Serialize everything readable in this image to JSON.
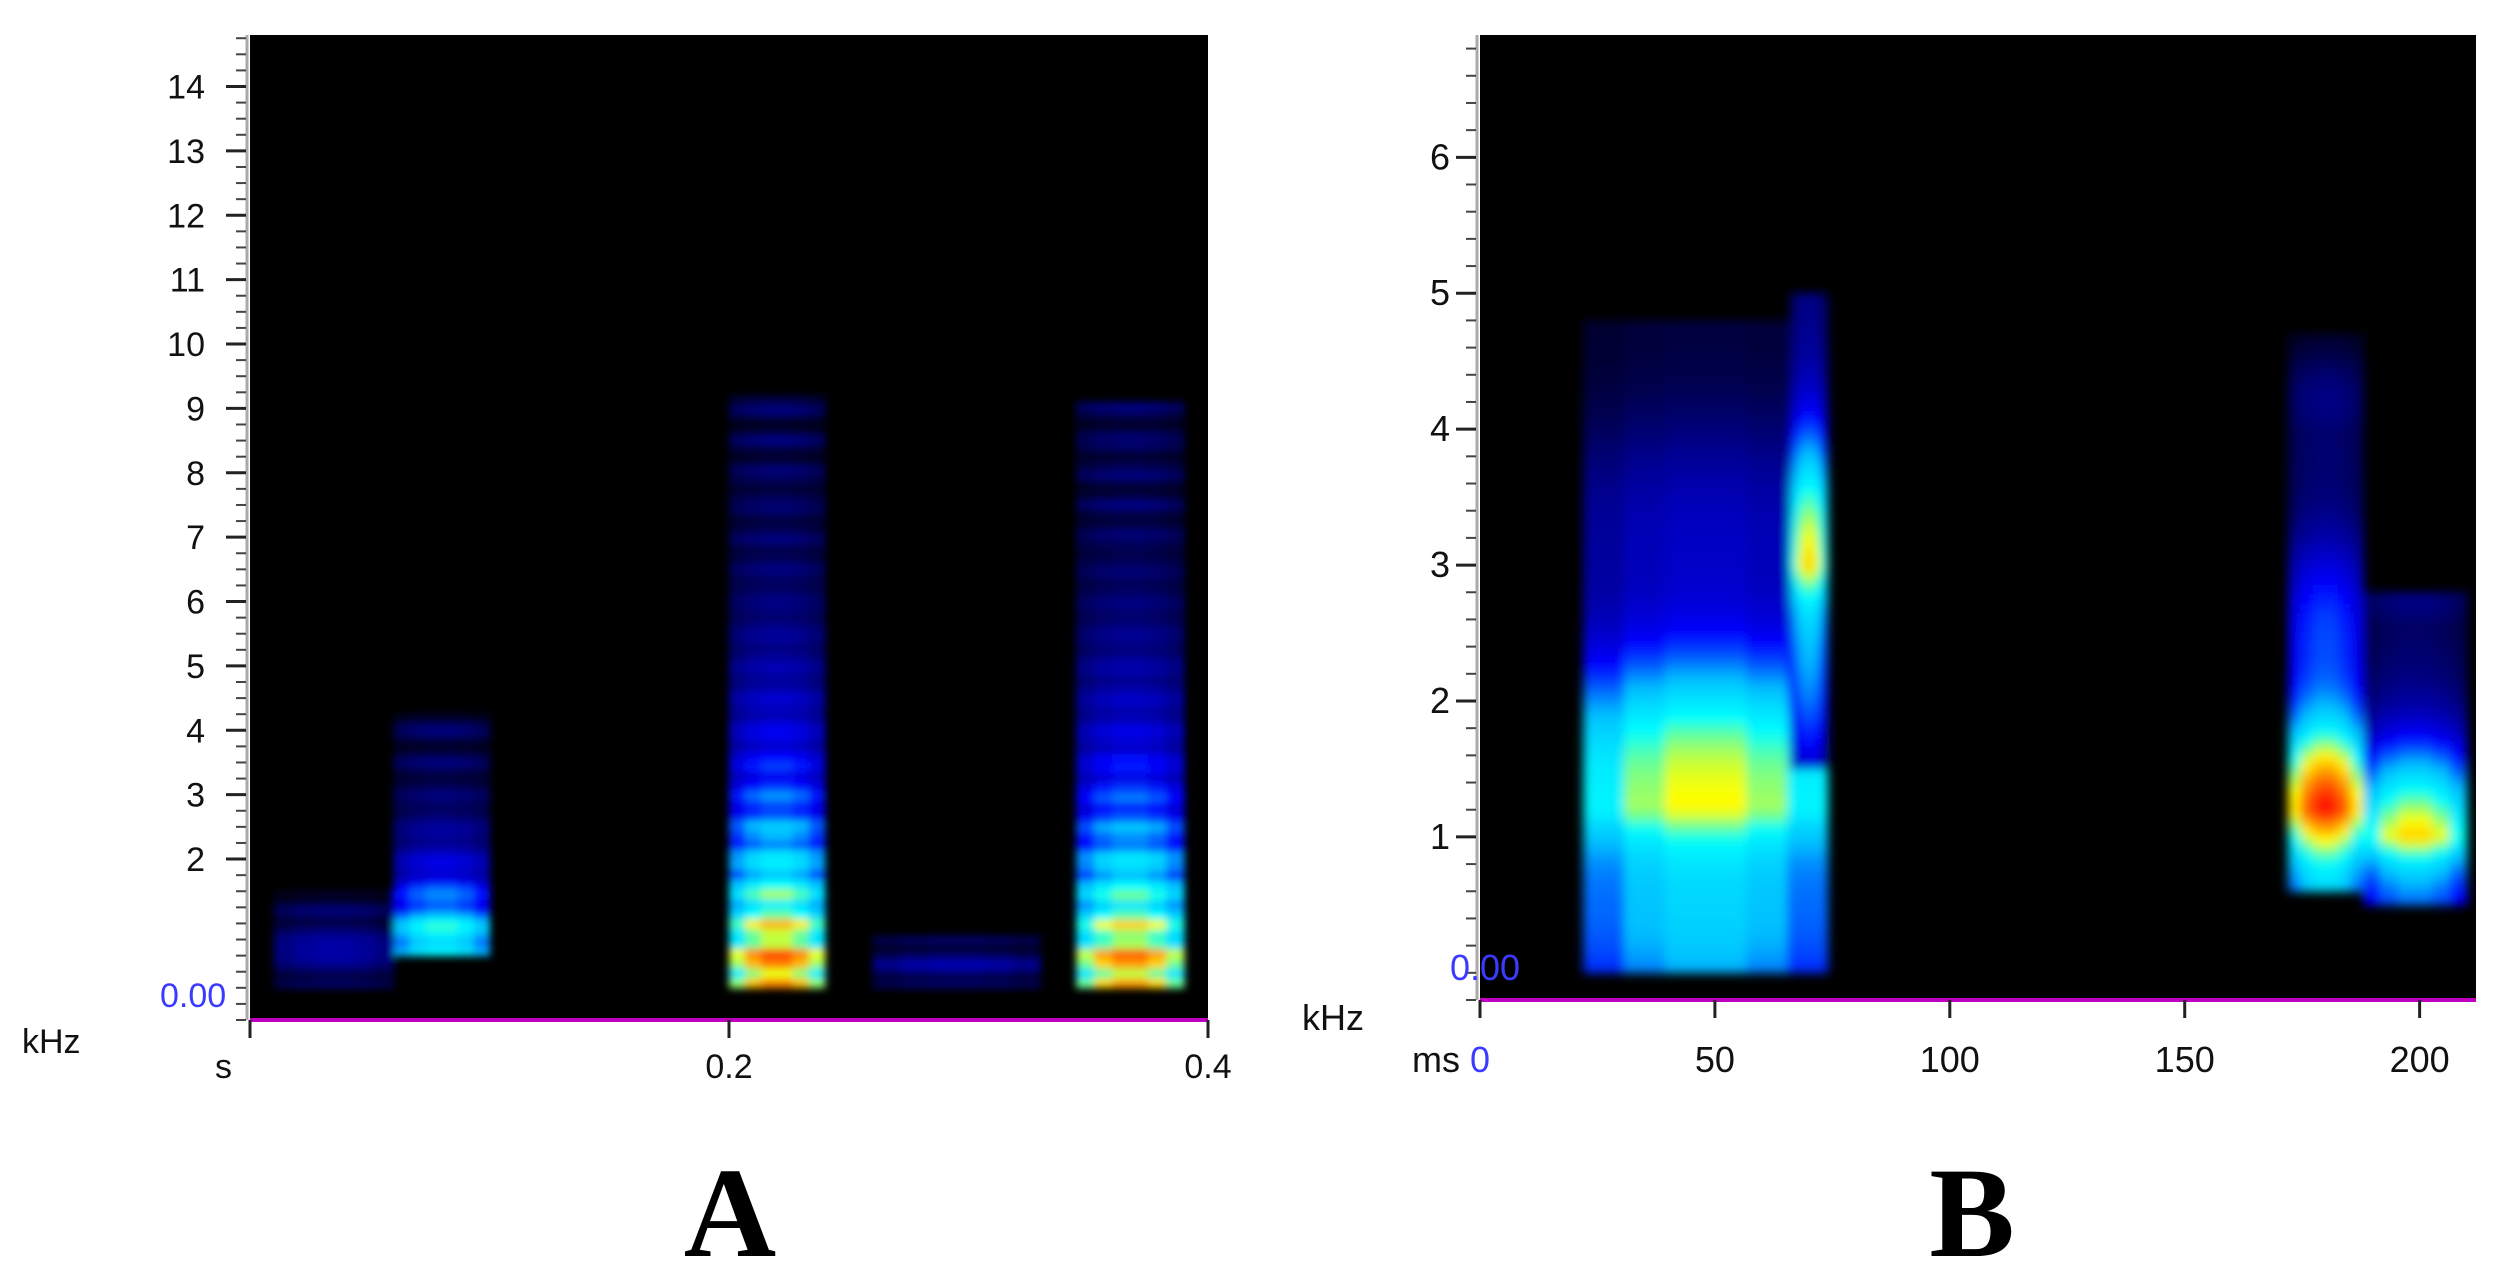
{
  "figure": {
    "panel_labels": [
      "A",
      "B"
    ]
  },
  "chart_data": [
    {
      "panel": "A",
      "type": "heatmap",
      "title": "",
      "xlabel": "s",
      "ylabel": "kHz",
      "x_unit": "s",
      "y_unit": "kHz",
      "xlim": [
        0,
        0.4
      ],
      "ylim": [
        -0.5,
        14.8
      ],
      "x_ticks": [
        {
          "value": 0,
          "label": ""
        },
        {
          "value": 0.2,
          "label": "0.2"
        },
        {
          "value": 0.4,
          "label": "0.4"
        }
      ],
      "y_ticks": [
        {
          "value": 2,
          "label": "2"
        },
        {
          "value": 3,
          "label": "3"
        },
        {
          "value": 4,
          "label": "4"
        },
        {
          "value": 5,
          "label": "5"
        },
        {
          "value": 6,
          "label": "6"
        },
        {
          "value": 7,
          "label": "7"
        },
        {
          "value": 8,
          "label": "8"
        },
        {
          "value": 9,
          "label": "9"
        },
        {
          "value": 10,
          "label": "10"
        },
        {
          "value": 11,
          "label": "11"
        },
        {
          "value": 12,
          "label": "12"
        },
        {
          "value": 13,
          "label": "13"
        },
        {
          "value": 14,
          "label": "14"
        }
      ],
      "origin_label": "0.00",
      "colormap": [
        "#000000",
        "#00008b",
        "#0000ff",
        "#00bfff",
        "#00ffff",
        "#ffff00",
        "#ff8000",
        "#ff0000",
        "#b00000"
      ],
      "background": "#000000",
      "baseline_color": "#c000c0",
      "origin_label_color": "#3b3bff",
      "energy_regions": [
        {
          "t_start": 0.06,
          "t_end": 0.1,
          "f_low": 0.5,
          "f_high": 4.3,
          "peak_freq": 0.8,
          "peak_level": 0.62,
          "harmonic_spacing": 0.5
        },
        {
          "t_start": 0.2,
          "t_end": 0.24,
          "f_low": 0.0,
          "f_high": 9.2,
          "peak_freq": 0.35,
          "peak_level": 0.88,
          "harmonic_spacing": 0.5
        },
        {
          "t_start": 0.345,
          "t_end": 0.39,
          "f_low": 0.0,
          "f_high": 9.1,
          "peak_freq": 0.35,
          "peak_level": 0.85,
          "harmonic_spacing": 0.5
        },
        {
          "t_start": 0.01,
          "t_end": 0.06,
          "f_low": 0.0,
          "f_high": 1.5,
          "peak_freq": 0.6,
          "peak_level": 0.22,
          "harmonic_spacing": 0.4
        },
        {
          "t_start": 0.26,
          "t_end": 0.33,
          "f_low": 0.0,
          "f_high": 0.8,
          "peak_freq": 0.35,
          "peak_level": 0.2,
          "harmonic_spacing": 0.4
        }
      ]
    },
    {
      "panel": "B",
      "type": "heatmap",
      "title": "",
      "xlabel": "ms",
      "ylabel": "kHz",
      "x_unit": "ms",
      "y_unit": "kHz",
      "xlim": [
        0,
        212
      ],
      "ylim": [
        -0.2,
        6.9
      ],
      "x_ticks": [
        {
          "value": 0,
          "label": "0"
        },
        {
          "value": 50,
          "label": "50"
        },
        {
          "value": 100,
          "label": "100"
        },
        {
          "value": 150,
          "label": "150"
        },
        {
          "value": 200,
          "label": "200"
        }
      ],
      "y_ticks": [
        {
          "value": 1,
          "label": "1"
        },
        {
          "value": 2,
          "label": "2"
        },
        {
          "value": 3,
          "label": "3"
        },
        {
          "value": 4,
          "label": "4"
        },
        {
          "value": 5,
          "label": "5"
        },
        {
          "value": 6,
          "label": "6"
        }
      ],
      "origin_label": "0.00",
      "colormap": [
        "#000000",
        "#00008b",
        "#0000ff",
        "#00bfff",
        "#00ffff",
        "#ffff00",
        "#ff8000",
        "#ff0000",
        "#b00000"
      ],
      "background": "#000000",
      "baseline_color": "#c000c0",
      "origin_label_color": "#3b3bff",
      "energy_regions": [
        {
          "t_start": 22,
          "t_end": 74,
          "f_low": 0.0,
          "f_high": 4.8,
          "peak_freq": 1.2,
          "peak_level": 0.8,
          "harmonic_spacing": 1.8
        },
        {
          "t_start": 66,
          "t_end": 74,
          "f_low": 1.5,
          "f_high": 5.0,
          "peak_freq": 3.0,
          "peak_level": 0.85,
          "harmonic_spacing": 1.8
        },
        {
          "t_start": 172,
          "t_end": 188,
          "f_low": 0.6,
          "f_high": 4.7,
          "peak_freq": 1.2,
          "peak_level": 0.92,
          "harmonic_spacing": 1.4
        },
        {
          "t_start": 188,
          "t_end": 210,
          "f_low": 0.5,
          "f_high": 2.8,
          "peak_freq": 1.0,
          "peak_level": 0.82,
          "harmonic_spacing": 1.4
        }
      ]
    }
  ]
}
